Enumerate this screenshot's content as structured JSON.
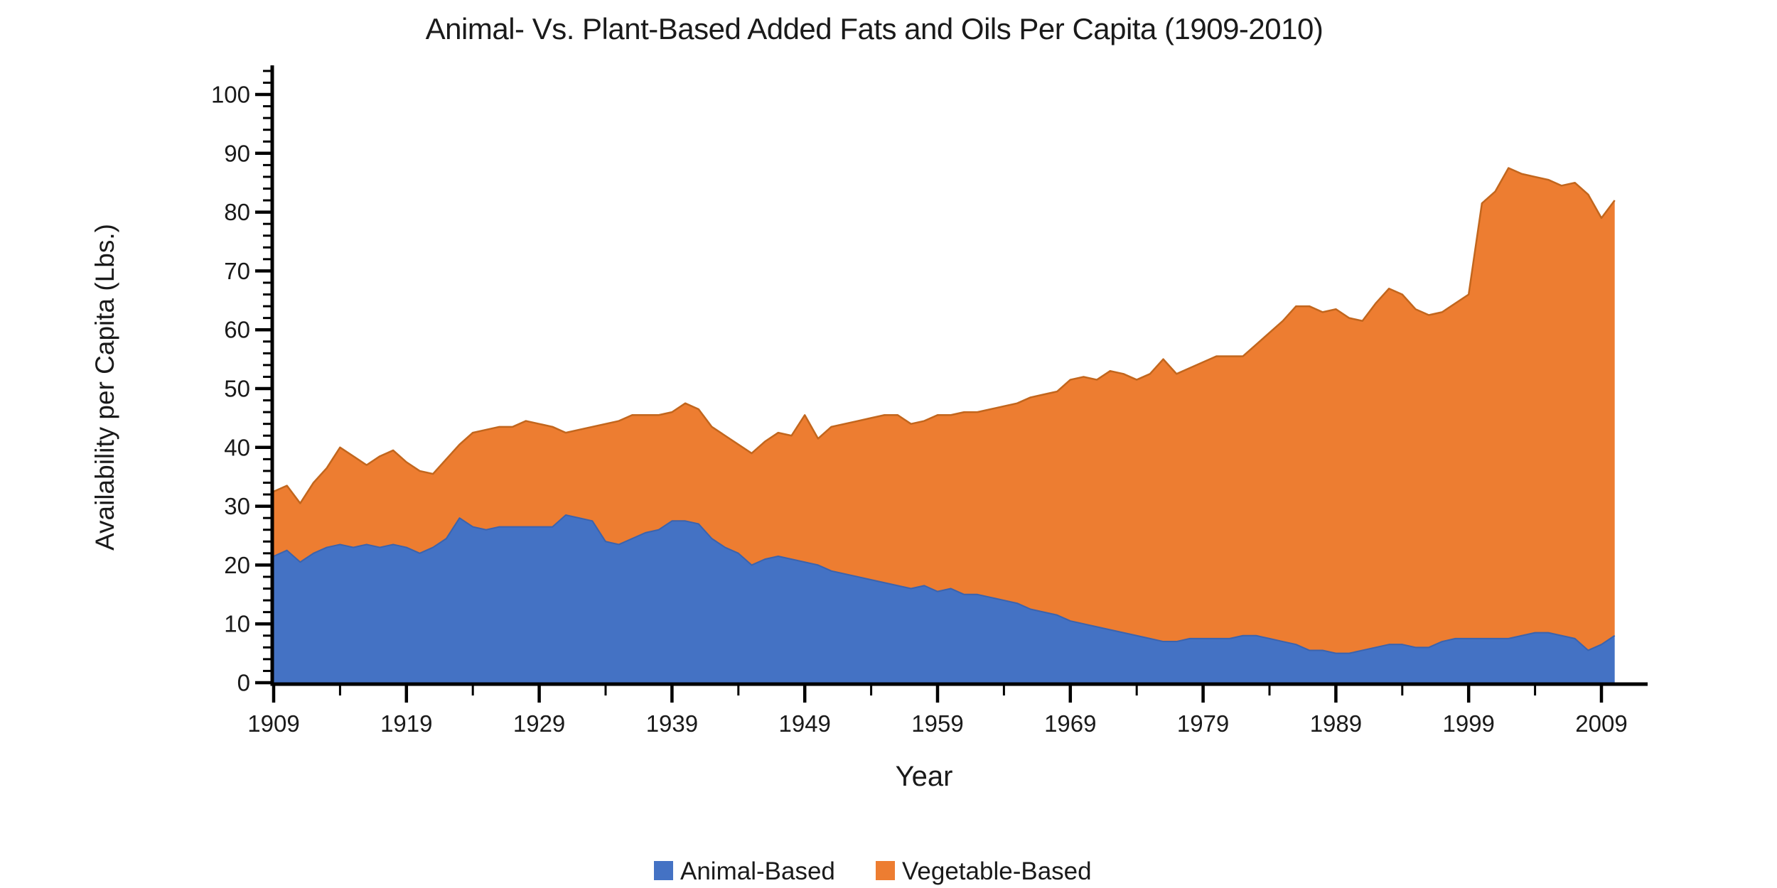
{
  "chart_data": {
    "type": "area",
    "stacked": true,
    "title": "Animal- Vs. Plant-Based Added Fats and Oils Per Capita (1909-2010)",
    "xlabel": "Year",
    "ylabel": "Availability per Capita (Lbs.)",
    "x_start": 1909,
    "x_end": 2010,
    "ylim": [
      0,
      100
    ],
    "y_major_step": 10,
    "y_minor_step": 2,
    "x_major_step": 10,
    "x_minor_step": 5,
    "grid": false,
    "legend_position": "bottom",
    "y_tick_labels": [
      "0",
      "10",
      "20",
      "30",
      "40",
      "50",
      "60",
      "70",
      "80",
      "90",
      "100"
    ],
    "x_tick_labels": [
      "1909",
      "1919",
      "1929",
      "1939",
      "1949",
      "1959",
      "1969",
      "1979",
      "1989",
      "1999",
      "2009"
    ],
    "years": [
      1909,
      1910,
      1911,
      1912,
      1913,
      1914,
      1915,
      1916,
      1917,
      1918,
      1919,
      1920,
      1921,
      1922,
      1923,
      1924,
      1925,
      1926,
      1927,
      1928,
      1929,
      1930,
      1931,
      1932,
      1933,
      1934,
      1935,
      1936,
      1937,
      1938,
      1939,
      1940,
      1941,
      1942,
      1943,
      1944,
      1945,
      1946,
      1947,
      1948,
      1949,
      1950,
      1951,
      1952,
      1953,
      1954,
      1955,
      1956,
      1957,
      1958,
      1959,
      1960,
      1961,
      1962,
      1963,
      1964,
      1965,
      1966,
      1967,
      1968,
      1969,
      1970,
      1971,
      1972,
      1973,
      1974,
      1975,
      1976,
      1977,
      1978,
      1979,
      1980,
      1981,
      1982,
      1983,
      1984,
      1985,
      1986,
      1987,
      1988,
      1989,
      1990,
      1991,
      1992,
      1993,
      1994,
      1995,
      1996,
      1997,
      1998,
      1999,
      2000,
      2001,
      2002,
      2003,
      2004,
      2005,
      2006,
      2007,
      2008,
      2009,
      2010
    ],
    "series": [
      {
        "name": "Animal-Based",
        "color": "#4472C4",
        "edge_color": "#3b63ad",
        "values": [
          21.5,
          22.5,
          20.5,
          22,
          23,
          23.5,
          23,
          23.5,
          23,
          23.5,
          23,
          22,
          23,
          24.5,
          28,
          26.5,
          26,
          26.5,
          26.5,
          26.5,
          26.5,
          26.5,
          28.5,
          28,
          27.5,
          24,
          23.5,
          24.5,
          25.5,
          26,
          27.5,
          27.5,
          27,
          24.5,
          23,
          22,
          20,
          21,
          21.5,
          21,
          20.5,
          20,
          19,
          18.5,
          18,
          17.5,
          17,
          16.5,
          16,
          16.5,
          15.5,
          16,
          15,
          15,
          14.5,
          14,
          13.5,
          12.5,
          12,
          11.5,
          10.5,
          10,
          9.5,
          9,
          8.5,
          8,
          7.5,
          7,
          7,
          7.5,
          7.5,
          7.5,
          7.5,
          8,
          8,
          7.5,
          7,
          6.5,
          5.5,
          5.5,
          5,
          5,
          5.5,
          6,
          6.5,
          6.5,
          6,
          6,
          7,
          7.5,
          7.5,
          7.5,
          7.5,
          7.5,
          8,
          8.5,
          8.5,
          8,
          7.5,
          5.5,
          6.5,
          8
        ]
      },
      {
        "name": "Vegetable-Based",
        "color": "#ED7D31",
        "edge_color": "#c2661d",
        "values": [
          11,
          11,
          10,
          12,
          13.5,
          16.5,
          15.5,
          13.5,
          15.5,
          16,
          14.5,
          14,
          12.5,
          13.5,
          12.5,
          16,
          17,
          17,
          17,
          18,
          17.5,
          17,
          14,
          15,
          16,
          20,
          21,
          21,
          20,
          19.5,
          18.5,
          20,
          19.5,
          19,
          19,
          18.5,
          19,
          20,
          21,
          21,
          25,
          21.5,
          24.5,
          25.5,
          26.5,
          27.5,
          28.5,
          29,
          28,
          28,
          30,
          29.5,
          31,
          31,
          32,
          33,
          34,
          36,
          37,
          38,
          41,
          42,
          42,
          44,
          44,
          43.5,
          45,
          48,
          45.5,
          46,
          47,
          48,
          48,
          47.5,
          49.5,
          52,
          54.5,
          57.5,
          58.5,
          57.5,
          58.5,
          57,
          56,
          58.5,
          60.5,
          59.5,
          57.5,
          56.5,
          56,
          57,
          58.5,
          74,
          76,
          80,
          78.5,
          77.5,
          77,
          76.5,
          77.5,
          77.5,
          72.5,
          74
        ]
      }
    ],
    "colors": {
      "axis": "#000000",
      "text": "#1a1a1a",
      "background": "#ffffff"
    }
  }
}
